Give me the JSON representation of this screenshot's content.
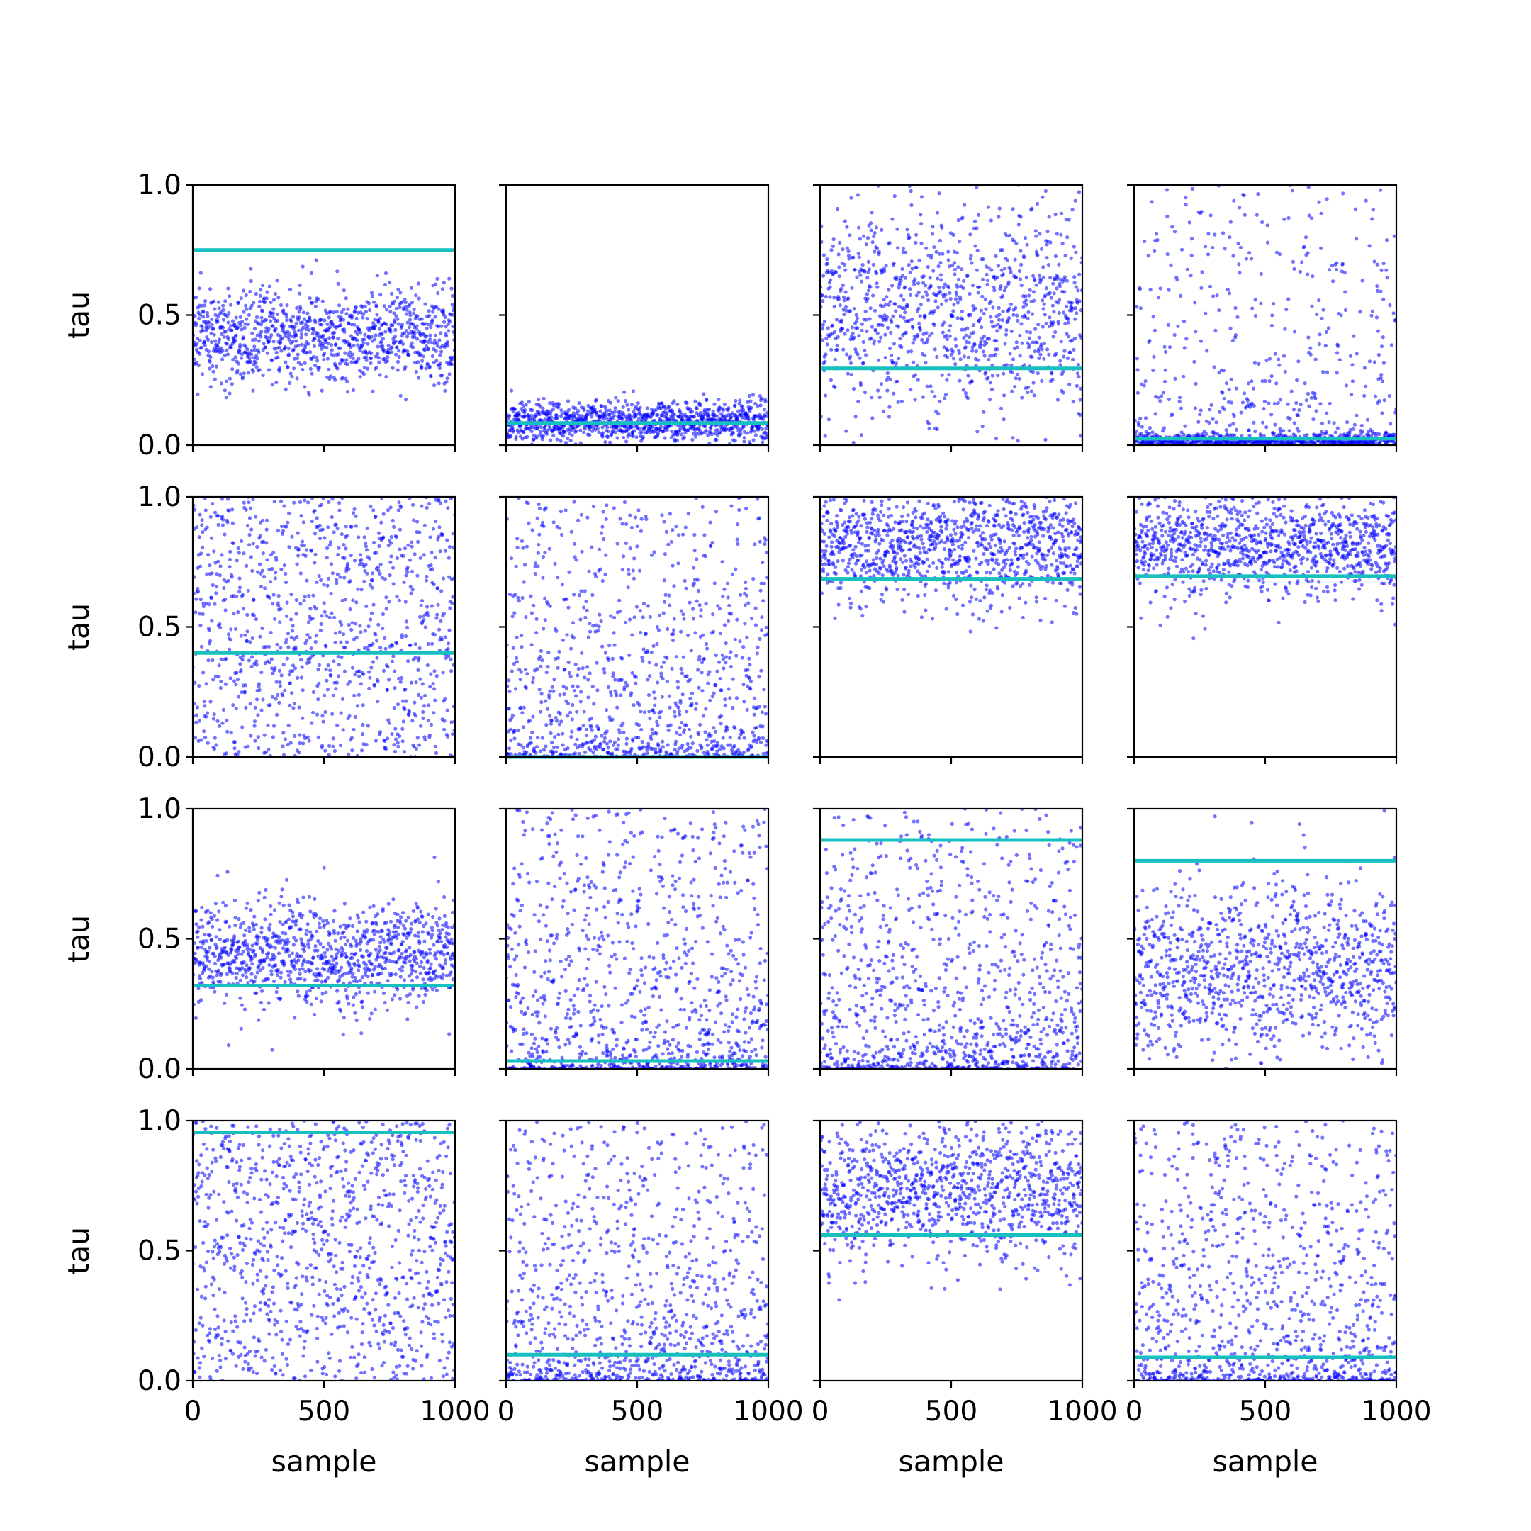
{
  "chart_data": {
    "type": "scatter",
    "layout": {
      "rows": 4,
      "cols": 4
    },
    "xlabel": "sample",
    "ylabel": "tau",
    "xlim": [
      0,
      1000
    ],
    "ylim": [
      0,
      1
    ],
    "xticks": [
      0,
      500,
      1000
    ],
    "xtick_labels": [
      "0",
      "500",
      "1000"
    ],
    "yticks": [
      0,
      0.5,
      1
    ],
    "ytick_labels": [
      "0.0",
      "0.5",
      "1.0"
    ],
    "n_samples": 1000,
    "colors": {
      "scatter": "#0000ff",
      "reference_line": "#17bfbf"
    },
    "panels": [
      {
        "row": 0,
        "col": 0,
        "reference": 0.75,
        "samples": {
          "distribution": "normal",
          "center": 0.42,
          "spread": 0.09
        }
      },
      {
        "row": 0,
        "col": 1,
        "reference": 0.085,
        "samples": {
          "distribution": "normal",
          "center": 0.09,
          "spread": 0.04
        }
      },
      {
        "row": 0,
        "col": 2,
        "reference": 0.295,
        "samples": {
          "distribution": "beta",
          "center": 0.52,
          "spread": 0.22
        }
      },
      {
        "row": 0,
        "col": 3,
        "reference": 0.025,
        "samples": {
          "distribution": "concentrated-near-zero",
          "center": 0.02,
          "spread": 0.3
        }
      },
      {
        "row": 1,
        "col": 0,
        "reference": 0.4,
        "samples": {
          "distribution": "uniform",
          "center": 0.5,
          "spread": 0.5
        }
      },
      {
        "row": 1,
        "col": 1,
        "reference": 0.0,
        "samples": {
          "distribution": "skewed-toward-zero",
          "center": 0.2,
          "spread": 0.25
        }
      },
      {
        "row": 1,
        "col": 2,
        "reference": 0.685,
        "samples": {
          "distribution": "normal",
          "center": 0.82,
          "spread": 0.12
        }
      },
      {
        "row": 1,
        "col": 3,
        "reference": 0.695,
        "samples": {
          "distribution": "normal",
          "center": 0.81,
          "spread": 0.1
        }
      },
      {
        "row": 2,
        "col": 0,
        "reference": 0.32,
        "samples": {
          "distribution": "normal",
          "center": 0.44,
          "spread": 0.1
        }
      },
      {
        "row": 2,
        "col": 1,
        "reference": 0.03,
        "samples": {
          "distribution": "skewed-toward-zero",
          "center": 0.25,
          "spread": 0.3
        }
      },
      {
        "row": 2,
        "col": 2,
        "reference": 0.88,
        "samples": {
          "distribution": "skewed-toward-zero",
          "center": 0.15,
          "spread": 0.3
        }
      },
      {
        "row": 2,
        "col": 3,
        "reference": 0.8,
        "samples": {
          "distribution": "normal",
          "center": 0.38,
          "spread": 0.17
        }
      },
      {
        "row": 3,
        "col": 0,
        "reference": 0.955,
        "samples": {
          "distribution": "uniform",
          "center": 0.48,
          "spread": 0.5
        }
      },
      {
        "row": 3,
        "col": 1,
        "reference": 0.1,
        "samples": {
          "distribution": "skewed-toward-zero",
          "center": 0.3,
          "spread": 0.3
        }
      },
      {
        "row": 3,
        "col": 2,
        "reference": 0.56,
        "samples": {
          "distribution": "beta",
          "center": 0.73,
          "spread": 0.14
        }
      },
      {
        "row": 3,
        "col": 3,
        "reference": 0.09,
        "samples": {
          "distribution": "skewed-toward-zero",
          "center": 0.25,
          "spread": 0.3
        }
      }
    ]
  }
}
